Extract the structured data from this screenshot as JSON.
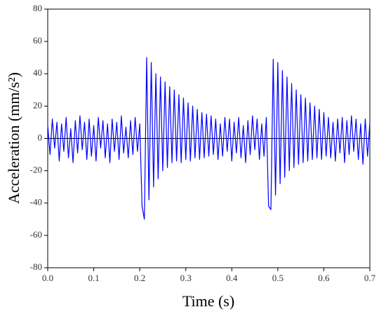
{
  "chart_data": {
    "type": "line",
    "xlabel": "Time (s)",
    "ylabel": "Acceleration (mm/s²)",
    "xlim": [
      0,
      0.7
    ],
    "ylim": [
      -80,
      80
    ],
    "xticks": [
      {
        "value": 0,
        "label": "0.0"
      },
      0.1,
      0.2,
      0.3,
      0.4,
      0.5,
      0.6,
      0.7
    ],
    "yticks": [
      -80,
      -60,
      -40,
      -20,
      0,
      20,
      40,
      60,
      80
    ],
    "zero_line": true,
    "series": [
      {
        "color": "#0000ff",
        "x": [
          0,
          0.005,
          0.01,
          0.015,
          0.02,
          0.025,
          0.03,
          0.035,
          0.04,
          0.045,
          0.05,
          0.055,
          0.06,
          0.065,
          0.07,
          0.075,
          0.08,
          0.085,
          0.09,
          0.095,
          0.1,
          0.105,
          0.11,
          0.115,
          0.12,
          0.125,
          0.13,
          0.135,
          0.14,
          0.145,
          0.15,
          0.155,
          0.16,
          0.165,
          0.17,
          0.175,
          0.18,
          0.185,
          0.19,
          0.195,
          0.2,
          0.205,
          0.21,
          0.215,
          0.22,
          0.225,
          0.23,
          0.235,
          0.24,
          0.245,
          0.25,
          0.255,
          0.26,
          0.265,
          0.27,
          0.275,
          0.28,
          0.285,
          0.29,
          0.295,
          0.3,
          0.305,
          0.31,
          0.315,
          0.32,
          0.325,
          0.33,
          0.335,
          0.34,
          0.345,
          0.35,
          0.355,
          0.36,
          0.365,
          0.37,
          0.375,
          0.38,
          0.385,
          0.39,
          0.395,
          0.4,
          0.405,
          0.41,
          0.415,
          0.42,
          0.425,
          0.43,
          0.435,
          0.44,
          0.445,
          0.45,
          0.455,
          0.46,
          0.465,
          0.47,
          0.475,
          0.48,
          0.485,
          0.49,
          0.495,
          0.5,
          0.505,
          0.51,
          0.515,
          0.52,
          0.525,
          0.53,
          0.535,
          0.54,
          0.545,
          0.55,
          0.555,
          0.56,
          0.565,
          0.57,
          0.575,
          0.58,
          0.585,
          0.59,
          0.595,
          0.6,
          0.605,
          0.61,
          0.615,
          0.62,
          0.625,
          0.63,
          0.635,
          0.64,
          0.645,
          0.65,
          0.655,
          0.66,
          0.665,
          0.67,
          0.675,
          0.68,
          0.685,
          0.69,
          0.695,
          0.7
        ],
        "values": [
          8,
          -10,
          12,
          -6,
          10,
          -14,
          9,
          -8,
          13,
          -12,
          6,
          -15,
          11,
          -9,
          14,
          -7,
          10,
          -13,
          12,
          -11,
          8,
          -14,
          13,
          -6,
          11,
          -12,
          9,
          -15,
          12,
          -8,
          10,
          -13,
          14,
          -9,
          7,
          -12,
          11,
          -10,
          13,
          -8,
          9,
          -42,
          -50,
          50,
          -38,
          47,
          -30,
          40,
          -25,
          38,
          -20,
          35,
          -18,
          32,
          -15,
          30,
          -14,
          27,
          -15,
          25,
          -13,
          22,
          -14,
          20,
          -12,
          18,
          -13,
          16,
          -12,
          15,
          -11,
          14,
          -10,
          12,
          -13,
          9,
          -11,
          13,
          -8,
          12,
          -14,
          10,
          -9,
          13,
          -12,
          8,
          -15,
          11,
          -10,
          14,
          -7,
          12,
          -13,
          9,
          -11,
          13,
          -42,
          -44,
          49,
          -35,
          47,
          -28,
          42,
          -24,
          38,
          -20,
          34,
          -18,
          30,
          -16,
          27,
          -15,
          25,
          -14,
          22,
          -13,
          20,
          -12,
          18,
          -13,
          16,
          -11,
          13,
          -12,
          10,
          -14,
          12,
          -9,
          13,
          -15,
          11,
          -10,
          14,
          -8,
          12,
          -13,
          9,
          -16,
          12,
          -11,
          10
        ]
      }
    ]
  }
}
